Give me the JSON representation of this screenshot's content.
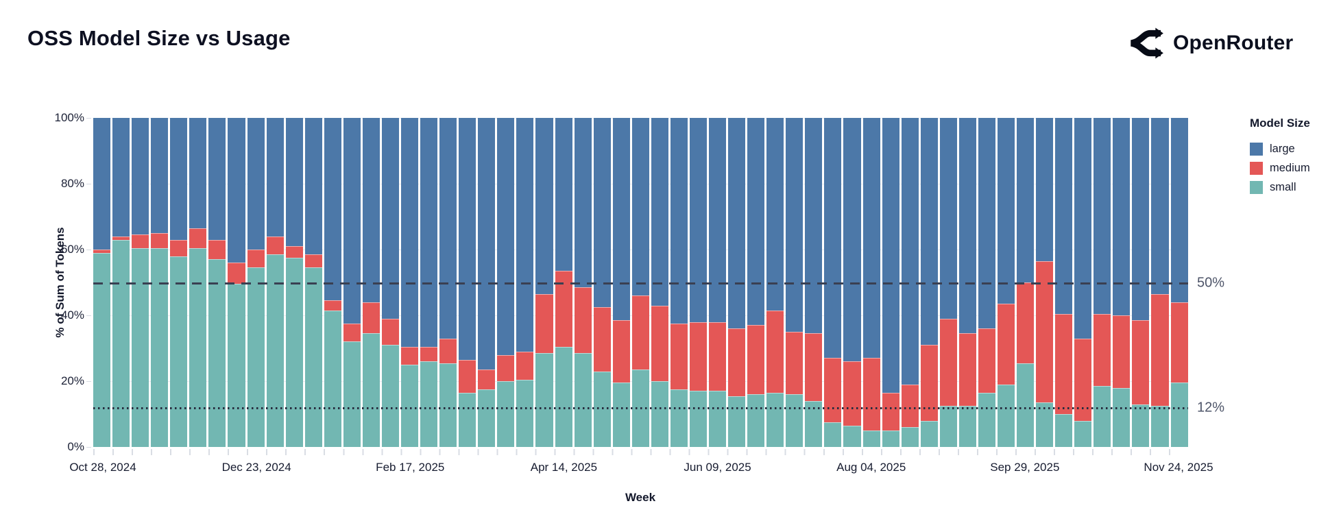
{
  "header": {
    "title": "OSS Model Size vs Usage",
    "brand": "OpenRouter"
  },
  "chart_data": {
    "type": "bar",
    "stacked": true,
    "normalized": true,
    "title": "OSS Model Size vs Usage",
    "xlabel": "Week",
    "ylabel": "% of Sum of Tokens",
    "ylim": [
      0,
      100
    ],
    "grid": true,
    "legend_title": "Model Size",
    "legend_position": "right",
    "y_ticks": [
      "0%",
      "20%",
      "40%",
      "60%",
      "80%",
      "100%"
    ],
    "x_tick_labels": [
      "Oct 28, 2024",
      "Dec 23, 2024",
      "Feb 17, 2025",
      "Apr 14, 2025",
      "Jun 09, 2025",
      "Aug 04, 2025",
      "Sep 29, 2025",
      "Nov 24, 2025"
    ],
    "x_tick_indices": [
      0,
      8,
      16,
      24,
      32,
      40,
      48,
      56
    ],
    "reference_lines": [
      {
        "value": 50,
        "label": "50%",
        "style": "dashed"
      },
      {
        "value": 12,
        "label": "12%",
        "style": "dotted"
      }
    ],
    "categories": [
      "Oct 28, 2024",
      "Nov 04, 2024",
      "Nov 11, 2024",
      "Nov 18, 2024",
      "Nov 25, 2024",
      "Dec 02, 2024",
      "Dec 09, 2024",
      "Dec 16, 2024",
      "Dec 23, 2024",
      "Dec 30, 2024",
      "Jan 06, 2025",
      "Jan 13, 2025",
      "Jan 20, 2025",
      "Jan 27, 2025",
      "Feb 03, 2025",
      "Feb 10, 2025",
      "Feb 17, 2025",
      "Feb 24, 2025",
      "Mar 03, 2025",
      "Mar 10, 2025",
      "Mar 17, 2025",
      "Mar 24, 2025",
      "Mar 31, 2025",
      "Apr 07, 2025",
      "Apr 14, 2025",
      "Apr 21, 2025",
      "Apr 28, 2025",
      "May 05, 2025",
      "May 12, 2025",
      "May 19, 2025",
      "May 26, 2025",
      "Jun 02, 2025",
      "Jun 09, 2025",
      "Jun 16, 2025",
      "Jun 23, 2025",
      "Jun 30, 2025",
      "Jul 07, 2025",
      "Jul 14, 2025",
      "Jul 21, 2025",
      "Jul 28, 2025",
      "Aug 04, 2025",
      "Aug 11, 2025",
      "Aug 18, 2025",
      "Aug 25, 2025",
      "Sep 01, 2025",
      "Sep 08, 2025",
      "Sep 15, 2025",
      "Sep 22, 2025",
      "Sep 29, 2025",
      "Oct 06, 2025",
      "Oct 13, 2025",
      "Oct 20, 2025",
      "Oct 27, 2025",
      "Nov 03, 2025",
      "Nov 10, 2025",
      "Nov 17, 2025",
      "Nov 24, 2025"
    ],
    "series": [
      {
        "name": "large",
        "color": "#4C78A8",
        "values": [
          40,
          36,
          35.5,
          35,
          37,
          33.5,
          37,
          44,
          40,
          36,
          39,
          41.5,
          55.5,
          62.5,
          56,
          61,
          69.5,
          69.5,
          67,
          73.5,
          76.5,
          72,
          71,
          53.5,
          46.5,
          51.5,
          57.5,
          61.5,
          54,
          57,
          62.5,
          62,
          62,
          64,
          63,
          58.5,
          65,
          65.5,
          73,
          74,
          73,
          83.5,
          81,
          69,
          61,
          65.5,
          64,
          56.5,
          50,
          43.5,
          59.5,
          67,
          59.5,
          60,
          61.5,
          53.5,
          56
        ]
      },
      {
        "name": "medium",
        "color": "#E45756",
        "values": [
          1,
          1,
          4,
          4.5,
          5,
          6,
          6,
          6.5,
          5.5,
          5.5,
          3.5,
          4,
          3,
          5.5,
          9.5,
          8,
          5.5,
          4.5,
          7.5,
          10,
          6,
          8,
          8.5,
          18,
          23,
          20,
          19.5,
          19,
          22.5,
          23,
          20,
          21,
          21,
          20.5,
          21,
          25,
          19,
          20.5,
          19.5,
          19.5,
          22,
          11.5,
          13,
          23,
          26.5,
          22,
          19.5,
          24.5,
          24.5,
          43,
          30.5,
          25,
          22,
          22,
          25.5,
          34,
          24.5
        ]
      },
      {
        "name": "small",
        "color": "#72B7B2",
        "values": [
          59,
          63,
          60.5,
          60.5,
          58,
          60.5,
          57,
          49.5,
          54.5,
          58.5,
          57.5,
          54.5,
          41.5,
          32,
          34.5,
          31,
          25,
          26,
          25.5,
          16.5,
          17.5,
          20,
          20.5,
          28.5,
          30.5,
          28.5,
          23,
          19.5,
          23.5,
          20,
          17.5,
          17,
          17,
          15.5,
          16,
          16.5,
          16,
          14,
          7.5,
          6.5,
          5,
          5,
          6,
          8,
          12.5,
          12.5,
          16.5,
          19,
          25.5,
          13.5,
          10,
          8,
          18.5,
          18,
          13,
          12.5,
          19.5
        ]
      }
    ]
  }
}
